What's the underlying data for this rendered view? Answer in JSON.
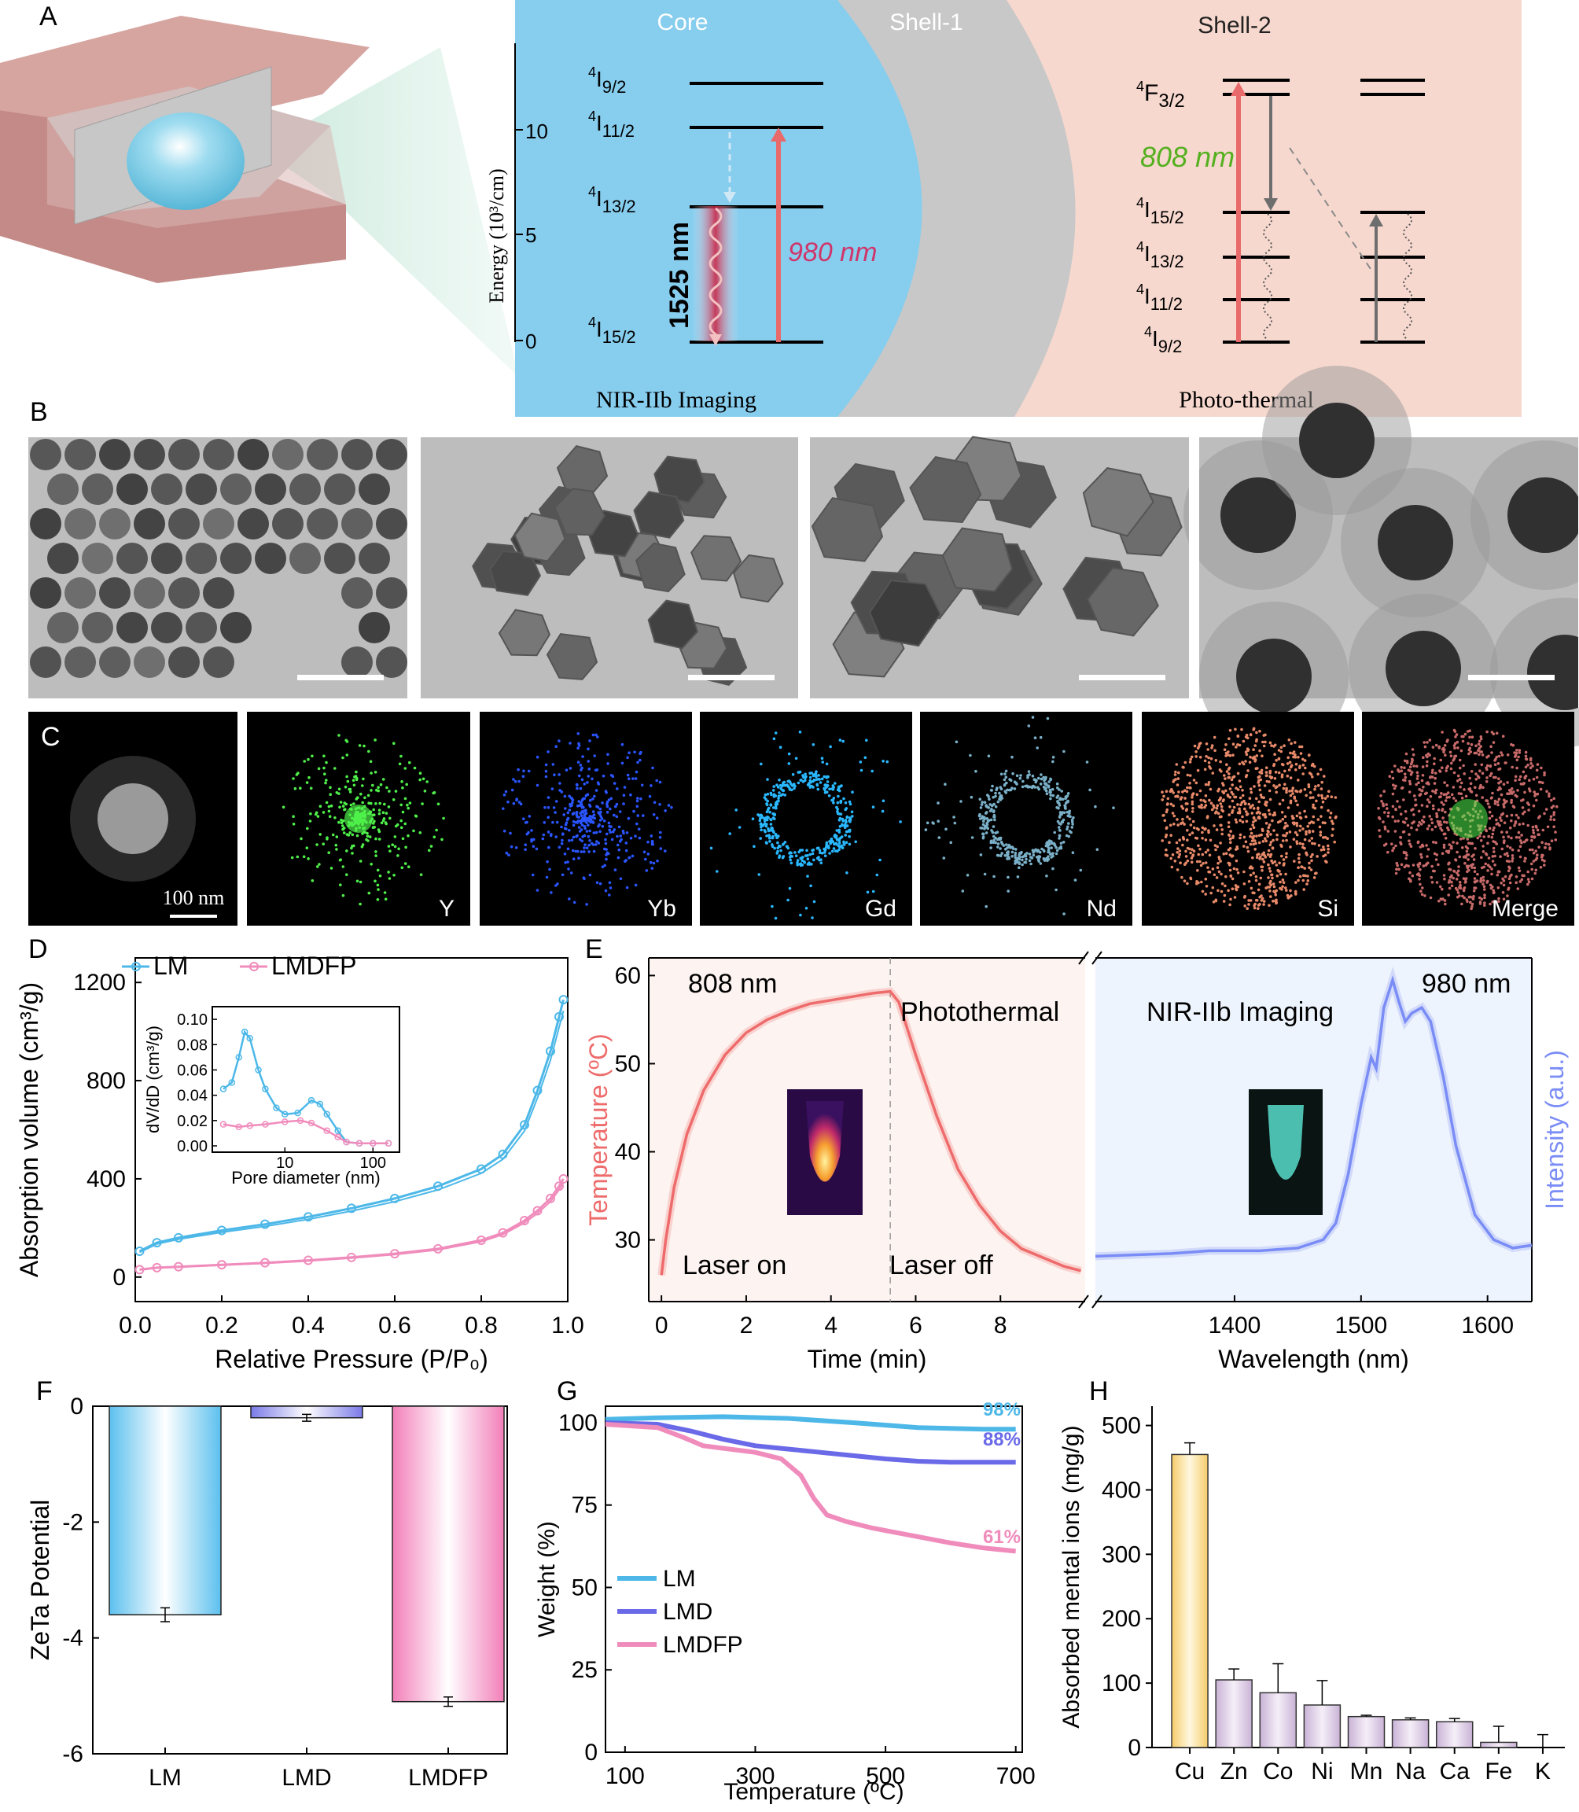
{
  "colors": {
    "core": "#87cdee",
    "shell1": "#c8c8c8",
    "shell2": "#f5d5cb",
    "LM": "#4db8e8",
    "LMD": "#6a6ae8",
    "LMDFP": "#f08cbc",
    "Cu": "#f5d98a",
    "temperature": "#ee6b6b",
    "intensity": "#7a8cf5"
  },
  "panels": {
    "A": "A",
    "B": "B",
    "C": "C",
    "D": "D",
    "E": "E",
    "F": "F",
    "G": "G",
    "H": "H"
  },
  "panelA": {
    "region_core": "Core",
    "region_shell1": "Shell-1",
    "region_shell2": "Shell-2",
    "energy_axis_label": "Energy (10³/cm)",
    "energy_ticks": [
      "10",
      "5",
      "0"
    ],
    "er_levels": [
      {
        "name": "I",
        "sub": "9/2"
      },
      {
        "name": "I",
        "sub": "11/2"
      },
      {
        "name": "I",
        "sub": "13/2"
      },
      {
        "name": "I",
        "sub": "15/2"
      }
    ],
    "nd_levels": [
      {
        "name": "F",
        "sub": "3/2"
      },
      {
        "name": "I",
        "sub": "15/2"
      },
      {
        "name": "I",
        "sub": "13/2"
      },
      {
        "name": "I",
        "sub": "11/2"
      },
      {
        "name": "I",
        "sub": "9/2"
      }
    ],
    "level_sup": "4",
    "emission": "1525 nm",
    "excitation_core": "980 nm",
    "excitation_shell": "808 nm",
    "caption_core": "NIR-IIb Imaging",
    "caption_shell": "Photo-thermal"
  },
  "panelC": {
    "scale_bar": "100 nm",
    "maps": [
      "Y",
      "Yb",
      "Gd",
      "Nd",
      "Si",
      "Merge"
    ],
    "map_colors": [
      "#4ff04a",
      "#2a55ff",
      "#2ab8ff",
      "#7ab0c8",
      "#e88a6a",
      "#c86a6a"
    ]
  },
  "chart_data": [
    {
      "panel": "D",
      "type": "line",
      "xlabel": "Relative Pressure (P/P₀)",
      "ylabel": "Absorption volume (cm³/g)",
      "xlim": [
        0,
        1
      ],
      "ylim": [
        -100,
        1300
      ],
      "xticks": [
        "0.0",
        "0.2",
        "0.4",
        "0.6",
        "0.8",
        "1.0"
      ],
      "yticks": [
        "0",
        "400",
        "800",
        "1200"
      ],
      "legend": [
        "LM",
        "LMDFP"
      ],
      "series": [
        {
          "name": "LM",
          "x": [
            0.01,
            0.05,
            0.1,
            0.2,
            0.3,
            0.4,
            0.5,
            0.6,
            0.7,
            0.8,
            0.85,
            0.9,
            0.93,
            0.96,
            0.98,
            0.99
          ],
          "values": [
            105,
            140,
            160,
            190,
            215,
            245,
            280,
            320,
            370,
            440,
            500,
            620,
            760,
            920,
            1060,
            1130
          ]
        },
        {
          "name": "LMDFP",
          "x": [
            0.01,
            0.05,
            0.1,
            0.2,
            0.3,
            0.4,
            0.5,
            0.6,
            0.7,
            0.8,
            0.85,
            0.9,
            0.93,
            0.96,
            0.98,
            0.99
          ],
          "values": [
            30,
            38,
            42,
            50,
            58,
            68,
            80,
            95,
            115,
            150,
            180,
            230,
            270,
            320,
            370,
            400
          ]
        }
      ],
      "inset": {
        "xlabel": "Pore diameter (nm)",
        "ylabel": "dV/dD (cm³/g)",
        "xscale": "log",
        "xticks": [
          "10",
          "100"
        ],
        "yticks": [
          "0.00",
          "0.02",
          "0.04",
          "0.06",
          "0.08",
          "0.10"
        ],
        "ylim": [
          0,
          0.11
        ],
        "series": [
          {
            "name": "LM",
            "x": [
              2,
              2.5,
              3,
              3.5,
              4,
              5,
              6,
              8,
              10,
              14,
              20,
              25,
              30,
              40,
              50,
              70,
              100,
              150
            ],
            "values": [
              0.045,
              0.05,
              0.07,
              0.09,
              0.085,
              0.06,
              0.045,
              0.03,
              0.025,
              0.026,
              0.036,
              0.033,
              0.025,
              0.012,
              0.003,
              0.002,
              0.002,
              0.002
            ]
          },
          {
            "name": "LMDFP",
            "x": [
              2,
              3,
              4,
              6,
              10,
              15,
              20,
              30,
              40,
              50,
              70,
              100,
              150
            ],
            "values": [
              0.017,
              0.015,
              0.016,
              0.017,
              0.019,
              0.02,
              0.018,
              0.012,
              0.007,
              0.003,
              0.002,
              0.002,
              0.002
            ]
          }
        ]
      }
    },
    {
      "panel": "E",
      "type": "line",
      "left": {
        "xlabel": "Time (min)",
        "ylabel": "Temperature (ºC)",
        "xlim": [
          -0.3,
          10
        ],
        "ylim": [
          23,
          62
        ],
        "xticks": [
          "0",
          "2",
          "4",
          "6",
          "8"
        ],
        "yticks": [
          "30",
          "40",
          "50",
          "60"
        ],
        "x": [
          0,
          0.1,
          0.3,
          0.6,
          1,
          1.5,
          2,
          2.5,
          3,
          3.5,
          4,
          4.5,
          5,
          5.4,
          5.6,
          6,
          6.5,
          7,
          7.5,
          8,
          8.5,
          9,
          9.5,
          9.9
        ],
        "values": [
          26,
          30,
          36,
          42,
          47,
          51,
          53.5,
          55,
          56,
          56.8,
          57.2,
          57.6,
          58,
          58.2,
          57,
          51,
          44,
          38,
          34,
          31,
          29,
          28,
          27,
          26.5
        ]
      },
      "right": {
        "xlabel": "Wavelength (nm)",
        "ylabel": "Intensity (a.u.)",
        "xlim": [
          1290,
          1635
        ],
        "xticks": [
          "1400",
          "1500",
          "1600"
        ],
        "x": [
          1290,
          1350,
          1380,
          1420,
          1450,
          1470,
          1480,
          1490,
          1500,
          1508,
          1512,
          1518,
          1525,
          1530,
          1535,
          1540,
          1548,
          1555,
          1565,
          1575,
          1590,
          1605,
          1620,
          1635
        ],
        "values": [
          0.0,
          0.01,
          0.02,
          0.02,
          0.03,
          0.06,
          0.12,
          0.3,
          0.55,
          0.72,
          0.68,
          0.9,
          1.0,
          0.92,
          0.85,
          0.88,
          0.9,
          0.85,
          0.65,
          0.4,
          0.15,
          0.06,
          0.03,
          0.04
        ]
      },
      "annotations": [
        "808 nm",
        "980 nm",
        "Photothermal",
        "NIR-IIb Imaging",
        "Laser on",
        "Laser off"
      ]
    },
    {
      "panel": "F",
      "type": "bar",
      "ylabel": "ZeTa Potential",
      "ylim": [
        -6,
        0
      ],
      "yticks": [
        "0",
        "-2",
        "-4",
        "-6"
      ],
      "categories": [
        "LM",
        "LMD",
        "LMDFP"
      ],
      "values": [
        -3.6,
        -0.2,
        -5.1
      ],
      "errors": [
        0.12,
        0.06,
        0.08
      ]
    },
    {
      "panel": "G",
      "type": "line",
      "xlabel": "Temperature (ºC)",
      "ylabel": "Weight (%)",
      "xlim": [
        70,
        710
      ],
      "ylim": [
        0,
        105
      ],
      "xticks": [
        "100",
        "300",
        "500",
        "700"
      ],
      "yticks": [
        "0",
        "25",
        "50",
        "75",
        "100"
      ],
      "legend": [
        "LM",
        "LMD",
        "LMDFP"
      ],
      "series": [
        {
          "name": "LM",
          "x": [
            70,
            150,
            250,
            350,
            450,
            550,
            650,
            700
          ],
          "values": [
            101,
            101.5,
            101.8,
            101.3,
            100,
            98.5,
            98,
            98
          ]
        },
        {
          "name": "LMD",
          "x": [
            70,
            150,
            200,
            250,
            300,
            350,
            400,
            450,
            500,
            550,
            600,
            650,
            700
          ],
          "values": [
            100,
            99.5,
            97.5,
            95,
            93,
            92,
            91,
            90,
            89,
            88.3,
            88,
            88,
            88
          ]
        },
        {
          "name": "LMDFP",
          "x": [
            70,
            150,
            190,
            220,
            260,
            300,
            340,
            370,
            390,
            410,
            440,
            480,
            520,
            560,
            600,
            650,
            700
          ],
          "values": [
            99.5,
            98.5,
            95.5,
            93,
            92,
            91,
            89,
            84,
            77,
            72,
            70,
            68,
            66.5,
            65,
            63.5,
            62,
            61
          ]
        }
      ],
      "labels": [
        "98%",
        "88%",
        "61%"
      ]
    },
    {
      "panel": "H",
      "type": "bar",
      "ylabel": "Absorbed mental ions (mg/g)",
      "ylim": [
        0,
        530
      ],
      "yticks": [
        "0",
        "100",
        "200",
        "300",
        "400",
        "500"
      ],
      "categories": [
        "Cu",
        "Zn",
        "Co",
        "Ni",
        "Mn",
        "Na",
        "Ca",
        "Fe",
        "K"
      ],
      "values": [
        455,
        105,
        85,
        66,
        48,
        43,
        40,
        8,
        0
      ],
      "errors": [
        18,
        17,
        45,
        38,
        2,
        3,
        5,
        25,
        20
      ]
    }
  ]
}
